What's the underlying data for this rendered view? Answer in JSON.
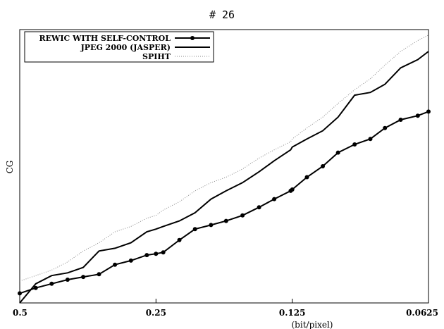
{
  "chart_data": {
    "type": "line",
    "title": "# 26",
    "xlabel": "(bit/pixel)",
    "ylabel": "CG",
    "x_scale": "log2-reversed",
    "x_ticks": [
      "0.5",
      "0.25",
      "0.125",
      "0.0625"
    ],
    "xlim": [
      0.5,
      0.0625
    ],
    "ylim": [
      0,
      1
    ],
    "grid": false,
    "legend_position": "top-left",
    "series": [
      {
        "name": "REWIC WITH SELF-CONTROL",
        "style": "line-with-dots",
        "color": "#000000",
        "x": [
          0.5,
          0.461,
          0.425,
          0.392,
          0.362,
          0.334,
          0.308,
          0.284,
          0.262,
          0.25,
          0.241,
          0.222,
          0.205,
          0.189,
          0.175,
          0.161,
          0.148,
          0.137,
          0.126,
          0.125,
          0.116,
          0.107,
          0.099,
          0.091,
          0.084,
          0.078,
          0.072,
          0.066,
          0.0625
        ],
        "y": [
          0.035,
          0.055,
          0.07,
          0.085,
          0.095,
          0.105,
          0.14,
          0.155,
          0.175,
          0.18,
          0.185,
          0.23,
          0.27,
          0.285,
          0.3,
          0.32,
          0.35,
          0.38,
          0.41,
          0.415,
          0.46,
          0.5,
          0.55,
          0.58,
          0.6,
          0.64,
          0.67,
          0.685,
          0.7
        ]
      },
      {
        "name": "JPEG 2000 (JASPER)",
        "style": "line",
        "color": "#000000",
        "x": [
          0.5,
          0.461,
          0.425,
          0.392,
          0.362,
          0.334,
          0.308,
          0.284,
          0.262,
          0.25,
          0.241,
          0.222,
          0.205,
          0.189,
          0.175,
          0.161,
          0.148,
          0.137,
          0.126,
          0.125,
          0.116,
          0.107,
          0.099,
          0.091,
          0.084,
          0.078,
          0.072,
          0.066,
          0.0625
        ],
        "y": [
          0.0,
          0.07,
          0.1,
          0.11,
          0.13,
          0.19,
          0.2,
          0.22,
          0.26,
          0.27,
          0.28,
          0.3,
          0.33,
          0.38,
          0.41,
          0.44,
          0.48,
          0.52,
          0.56,
          0.57,
          0.6,
          0.63,
          0.68,
          0.76,
          0.77,
          0.8,
          0.86,
          0.89,
          0.92
        ]
      },
      {
        "name": "SPIHT",
        "style": "dotted",
        "color": "#888888",
        "x": [
          0.5,
          0.461,
          0.425,
          0.392,
          0.362,
          0.334,
          0.308,
          0.284,
          0.262,
          0.25,
          0.241,
          0.222,
          0.205,
          0.189,
          0.175,
          0.161,
          0.148,
          0.137,
          0.126,
          0.125,
          0.116,
          0.107,
          0.099,
          0.091,
          0.084,
          0.078,
          0.072,
          0.066,
          0.0625
        ],
        "y": [
          0.08,
          0.1,
          0.12,
          0.15,
          0.19,
          0.22,
          0.26,
          0.28,
          0.31,
          0.32,
          0.34,
          0.37,
          0.41,
          0.44,
          0.46,
          0.49,
          0.53,
          0.56,
          0.59,
          0.6,
          0.64,
          0.68,
          0.73,
          0.78,
          0.82,
          0.87,
          0.92,
          0.96,
          0.98
        ]
      }
    ]
  }
}
